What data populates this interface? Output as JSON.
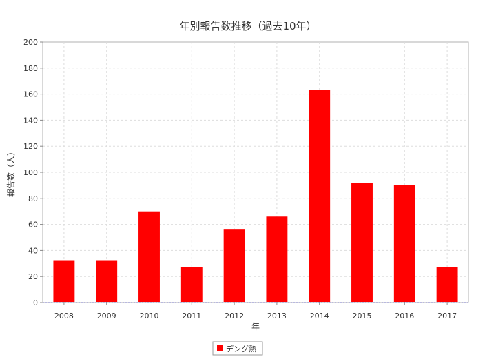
{
  "chart_data": {
    "type": "bar",
    "title": "年別報告数推移（過去10年）",
    "xlabel": "年",
    "ylabel": "報告数（人）",
    "categories": [
      "2008",
      "2009",
      "2010",
      "2011",
      "2012",
      "2013",
      "2014",
      "2015",
      "2016",
      "2017"
    ],
    "series": [
      {
        "name": "デング熱",
        "color": "#ff0000",
        "values": [
          32,
          32,
          70,
          27,
          56,
          66,
          163,
          92,
          90,
          27
        ]
      }
    ],
    "ylim": [
      0,
      200
    ],
    "yticks": [
      0,
      20,
      40,
      60,
      80,
      100,
      120,
      140,
      160,
      180,
      200
    ],
    "grid": true,
    "legend_position": "bottom-center"
  }
}
